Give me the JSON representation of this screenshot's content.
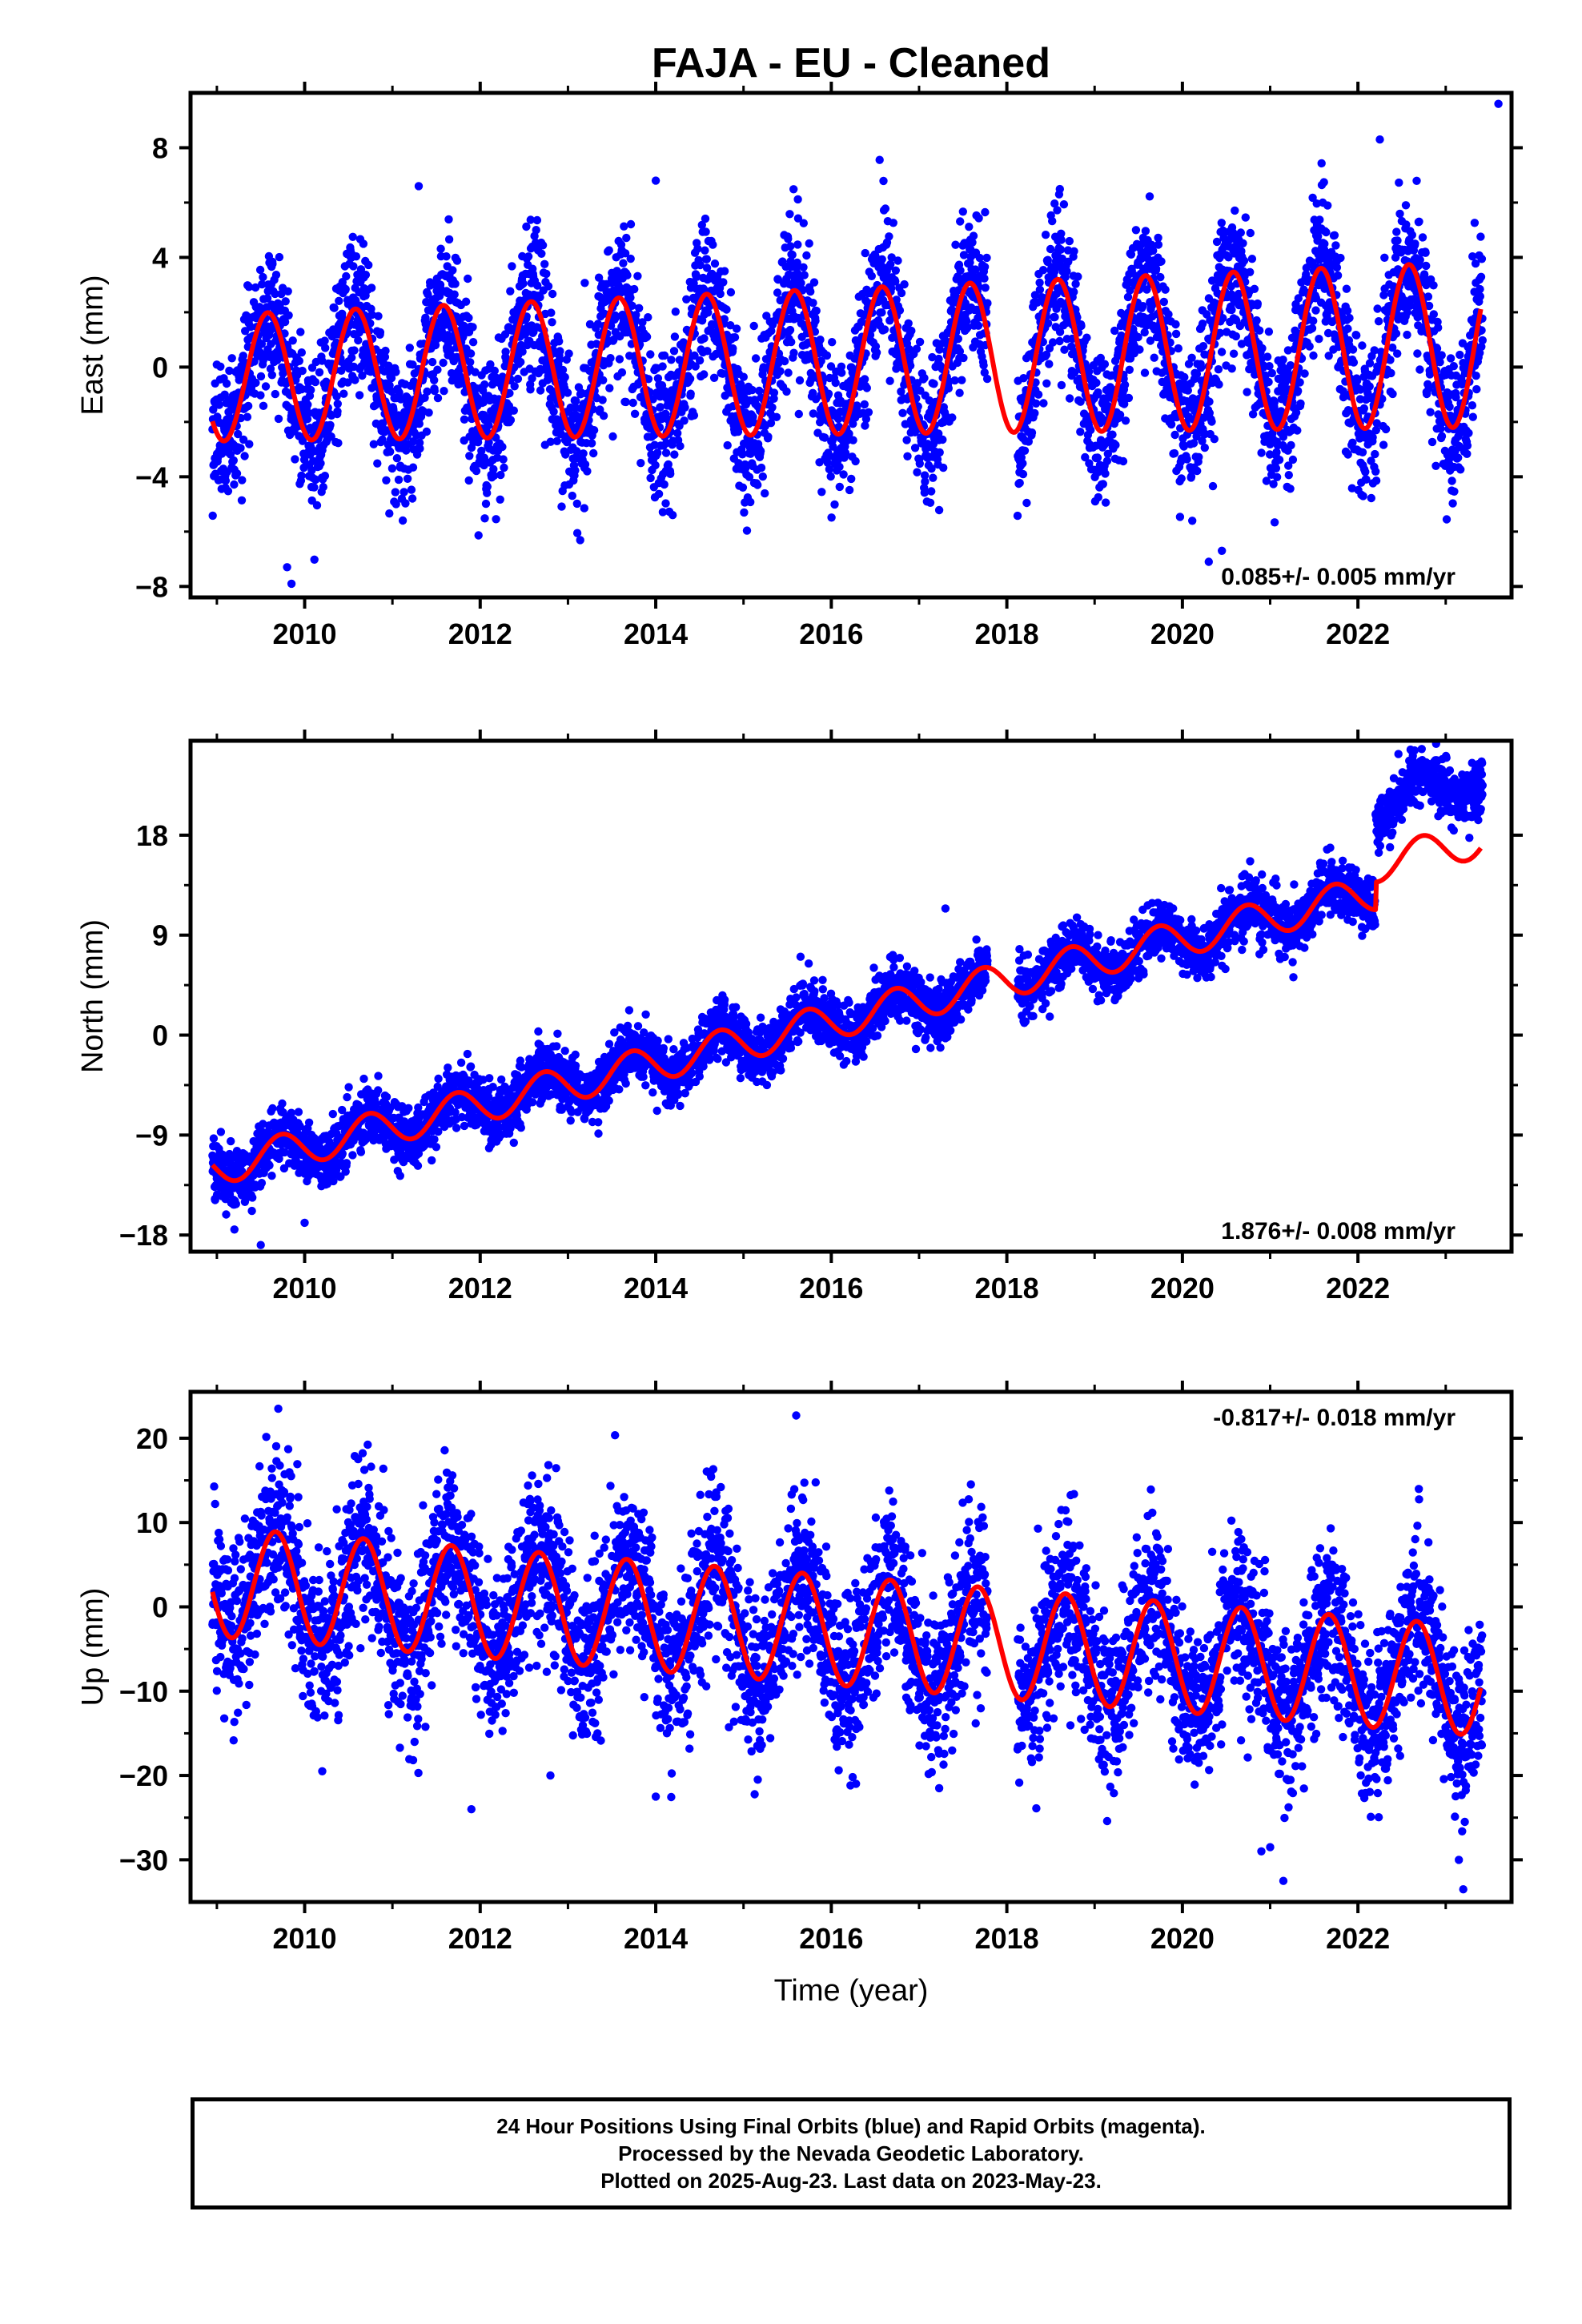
{
  "title": "FAJA  - EU - Cleaned",
  "xlabel": "Time (year)",
  "footer": {
    "line1": "24 Hour Positions Using Final Orbits (blue) and Rapid Orbits (magenta).",
    "line2": "Processed by the Nevada Geodetic Laboratory.",
    "line3": "Plotted on 2025-Aug-23. Last data on 2023-May-23."
  },
  "colors": {
    "observations": "#0000ff",
    "model": "#ff0000"
  },
  "chart_data": [
    {
      "type": "scatter",
      "panel": "east",
      "ylabel": "East (mm)",
      "rate_label": "0.085+/- 0.005 mm/yr",
      "rate_label_position": "bottom-right",
      "xlim": [
        2008.7,
        2023.75
      ],
      "ylim": [
        -8.4,
        10.0
      ],
      "x_ticks": [
        2010,
        2012,
        2014,
        2016,
        2018,
        2020,
        2022
      ],
      "y_ticks": [
        -8,
        -4,
        0,
        4,
        8
      ],
      "model": {
        "start": 2008.95,
        "end": 2023.4,
        "amp0": 2.3,
        "amp_rate": 0.05,
        "phase": 0.33,
        "trend": 0.085,
        "offset": -0.4
      },
      "scatter": {
        "noise": 1.35,
        "gap": [
          2017.78,
          2018.12
        ]
      },
      "outliers": [
        [
          2009.8,
          -7.3
        ],
        [
          2009.85,
          -7.9
        ],
        [
          2020.45,
          -6.7
        ],
        [
          2020.3,
          -7.1
        ],
        [
          2023.6,
          9.6
        ],
        [
          2014.0,
          6.8
        ],
        [
          2011.3,
          6.6
        ],
        [
          2022.25,
          8.3
        ]
      ]
    },
    {
      "type": "scatter",
      "panel": "north",
      "ylabel": "North (mm)",
      "rate_label": "1.876+/- 0.008 mm/yr",
      "rate_label_position": "bottom-right",
      "xlim": [
        2008.7,
        2023.75
      ],
      "ylim": [
        -19.5,
        26.5
      ],
      "x_ticks": [
        2010,
        2012,
        2014,
        2016,
        2018,
        2020,
        2022
      ],
      "y_ticks": [
        -18,
        -9,
        0,
        9,
        18
      ],
      "model": {
        "start": 2008.95,
        "end": 2023.4,
        "amp0": 1.6,
        "amp_rate": 0.0,
        "phase": 0.48,
        "trend": 1.876,
        "offset": -12.0,
        "step": [
          2022.2,
          2.5
        ]
      },
      "data_step": [
        2022.2,
        8.0
      ],
      "scatter": {
        "noise": 1.3,
        "gap": [
          2017.78,
          2018.12
        ]
      },
      "outliers": [
        [
          2009.5,
          -18.9
        ],
        [
          2009.2,
          -17.5
        ],
        [
          2022.6,
          25.7
        ],
        [
          2023.3,
          24.5
        ],
        [
          2017.3,
          11.4
        ],
        [
          2010.0,
          -16.9
        ]
      ]
    },
    {
      "type": "scatter",
      "panel": "up",
      "ylabel": "Up (mm)",
      "rate_label": "-0.817+/- 0.018 mm/yr",
      "rate_label_position": "top-right",
      "xlim": [
        2008.7,
        2023.75
      ],
      "ylim": [
        -35,
        25.5
      ],
      "x_ticks": [
        2010,
        2012,
        2014,
        2016,
        2018,
        2020,
        2022
      ],
      "y_ticks": [
        -30,
        -20,
        -10,
        0,
        10,
        20
      ],
      "model": {
        "start": 2008.95,
        "end": 2023.4,
        "amp0": 6.5,
        "amp_rate": 0.0,
        "phase": 0.42,
        "trend": -0.817,
        "offset": 3.0
      },
      "scatter": {
        "noise": 4.8,
        "gap": [
          2017.78,
          2018.12
        ]
      },
      "outliers": [
        [
          2011.9,
          -24.0
        ],
        [
          2014.0,
          -22.5
        ],
        [
          2012.8,
          -20.0
        ],
        [
          2010.2,
          -19.5
        ],
        [
          2021.15,
          -32.5
        ],
        [
          2023.2,
          -33.5
        ],
        [
          2023.15,
          -30.0
        ],
        [
          2009.7,
          23.5
        ],
        [
          2015.6,
          22.7
        ],
        [
          2020.9,
          -29.0
        ],
        [
          2021.0,
          -28.5
        ]
      ]
    }
  ]
}
